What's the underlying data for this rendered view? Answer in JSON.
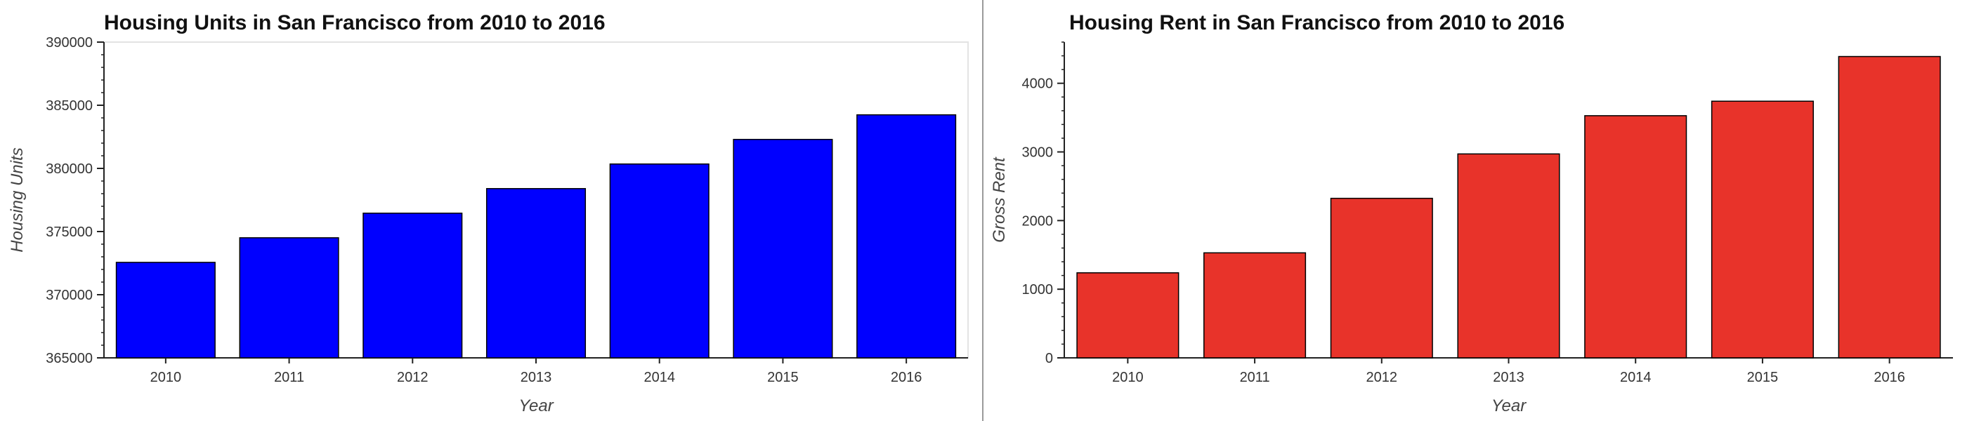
{
  "chart_data": [
    {
      "type": "bar",
      "title": "Housing Units in San Francisco from 2010 to 2016",
      "xlabel": "Year",
      "ylabel": "Housing Units",
      "categories": [
        "2010",
        "2011",
        "2012",
        "2013",
        "2014",
        "2015",
        "2016"
      ],
      "values": [
        372560,
        374508,
        376454,
        378401,
        380348,
        382295,
        384242
      ],
      "ylim": [
        365000,
        390000
      ],
      "yticks": [
        "365000",
        "370000",
        "375000",
        "380000",
        "385000",
        "390000"
      ],
      "color": "#0000ff",
      "grid": false,
      "legend": false
    },
    {
      "type": "bar",
      "title": "Housing Rent in San Francisco from 2010 to 2016",
      "xlabel": "Year",
      "ylabel": "Gross Rent",
      "categories": [
        "2010",
        "2011",
        "2012",
        "2013",
        "2014",
        "2015",
        "2016"
      ],
      "values": [
        1239,
        1530,
        2324,
        2971,
        3528,
        3739,
        4390
      ],
      "ylim": [
        0,
        4600
      ],
      "yticks": [
        "0",
        "1000",
        "2000",
        "3000",
        "4000"
      ],
      "color": "#e8332a",
      "grid": false,
      "legend": false
    }
  ]
}
